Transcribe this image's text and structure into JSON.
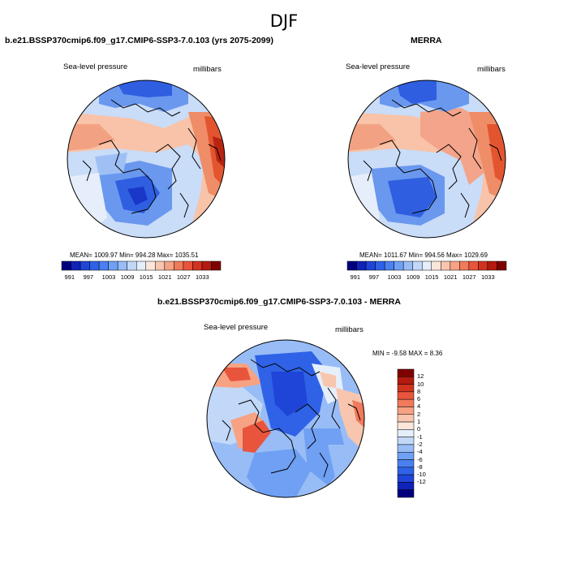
{
  "figure": {
    "title": "DJF"
  },
  "panels": [
    {
      "id": "model",
      "title": "b.e21.BSSP370cmip6.f09_g17.CMIP6-SSP3-7.0.103 (yrs 2075-2099)",
      "left_label": "Sea-level pressure",
      "right_label": "millibars",
      "stats": "MEAN= 1009.97  Min= 994.28  Max= 1035.51"
    },
    {
      "id": "obs",
      "title": "MERRA",
      "left_label": "Sea-level pressure",
      "right_label": "millibars",
      "stats": "MEAN= 1011.67  Min= 994.56  Max= 1029.69"
    },
    {
      "id": "diff",
      "title": "b.e21.BSSP370cmip6.f09_g17.CMIP6-SSP3-7.0.103 - MERRA",
      "left_label": "Sea-level pressure",
      "right_label": "millibars",
      "stats": "MIN =  -9.58 MAX =   8.36"
    }
  ],
  "colorbar_abs": {
    "colors": [
      "#00007f",
      "#0f23b8",
      "#1f45d8",
      "#2f62e6",
      "#4a80ef",
      "#6fa0f3",
      "#98bcf6",
      "#c2d8f8",
      "#e5eefb",
      "#fbe6da",
      "#f8c6ae",
      "#f6a283",
      "#f07a5b",
      "#e8553c",
      "#d23320",
      "#b41a0f",
      "#7f0000"
    ],
    "labels": [
      "991",
      "997",
      "1003",
      "1009",
      "1015",
      "1021",
      "1027",
      "1033"
    ]
  },
  "colorbar_diff": {
    "colors": [
      "#00007f",
      "#0f23b8",
      "#1f45d8",
      "#2f62e6",
      "#4a80ef",
      "#6fa0f3",
      "#98bcf6",
      "#c2d8f8",
      "#e5eefb",
      "#fbe6da",
      "#f8c6ae",
      "#f6a283",
      "#f07a5b",
      "#e8553c",
      "#d23320",
      "#b41a0f",
      "#7f0000"
    ],
    "labels": [
      "12",
      "10",
      "8",
      "6",
      "4",
      "2",
      "1",
      "0",
      "-1",
      "-2",
      "-4",
      "-6",
      "-8",
      "-10",
      "-12"
    ]
  }
}
